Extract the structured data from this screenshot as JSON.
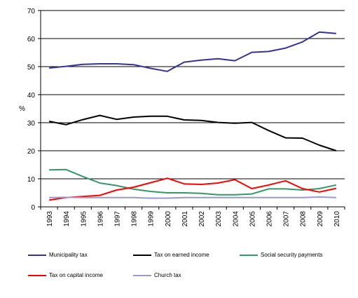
{
  "chart_data": {
    "type": "line",
    "ylabel": "%",
    "ylim": [
      0,
      70
    ],
    "yticks": [
      "0",
      "10",
      "20",
      "30",
      "40",
      "50",
      "60",
      "70"
    ],
    "grid": "horizontal",
    "legend_position": "bottom",
    "categories": [
      "1993",
      "1994",
      "1995",
      "1996",
      "1997",
      "1998",
      "1999",
      "2000",
      "2001",
      "2002",
      "2003",
      "2004",
      "2005",
      "2006",
      "2007",
      "2008",
      "2009",
      "2010"
    ],
    "series": [
      {
        "name": "Municipality tax",
        "color": "#333399",
        "values": [
          49.5,
          50.1,
          50.8,
          51.0,
          51.0,
          50.7,
          49.4,
          48.3,
          51.6,
          52.3,
          52.8,
          52.1,
          55.1,
          55.4,
          56.6,
          58.8,
          62.3,
          61.8
        ]
      },
      {
        "name": "Tax on earned income",
        "color": "#000000",
        "values": [
          30.5,
          29.3,
          31.1,
          32.6,
          31.2,
          32.0,
          32.3,
          32.3,
          31.0,
          30.8,
          30.1,
          29.8,
          30.1,
          27.2,
          24.6,
          24.5,
          22.0,
          20.0
        ]
      },
      {
        "name": "Social security payments",
        "color": "#339966",
        "values": [
          13.2,
          13.3,
          10.8,
          8.5,
          7.6,
          6.3,
          5.5,
          5.0,
          5.0,
          4.8,
          4.3,
          4.3,
          4.6,
          6.4,
          6.4,
          6.0,
          6.5,
          7.8
        ]
      },
      {
        "name": "Tax on capital income",
        "color": "#ff0000",
        "values": [
          2.4,
          3.3,
          3.7,
          4.1,
          6.0,
          7.0,
          8.6,
          10.2,
          8.2,
          8.0,
          8.5,
          9.7,
          6.5,
          7.8,
          9.3,
          6.5,
          5.3,
          6.6
        ]
      },
      {
        "name": "Church tax",
        "color": "#9999cc",
        "values": [
          3.3,
          3.4,
          3.3,
          3.3,
          3.3,
          3.3,
          3.1,
          3.1,
          3.3,
          3.3,
          3.3,
          3.3,
          3.3,
          3.3,
          3.3,
          3.3,
          3.5,
          3.3
        ]
      }
    ]
  }
}
